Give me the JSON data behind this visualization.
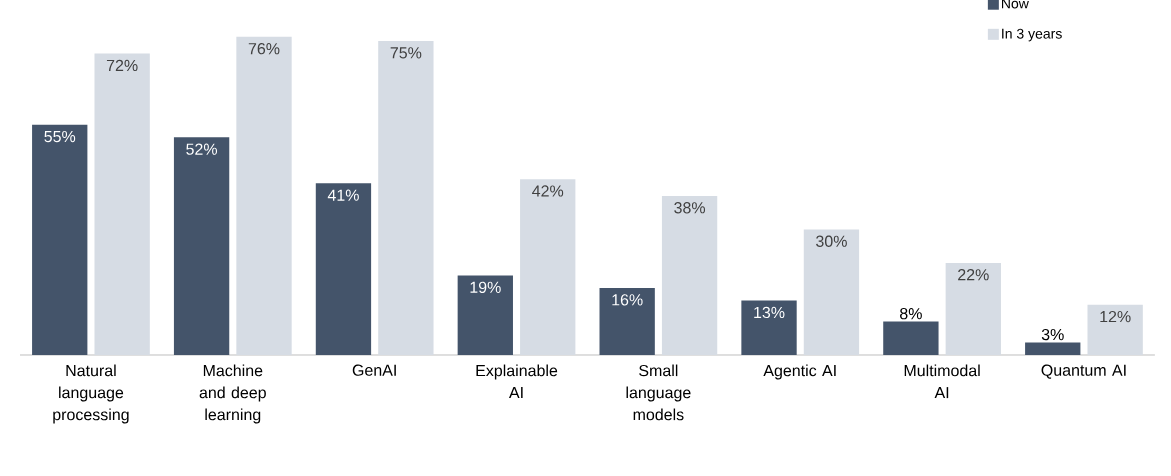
{
  "chart_data": {
    "type": "bar",
    "categories": [
      "Natural language processing",
      "Machine and deep learning",
      "GenAI",
      "Explainable AI",
      "Small language models",
      "Agentic AI",
      "Multimodal AI",
      "Quantum AI"
    ],
    "series": [
      {
        "name": "Now",
        "color": "#44546a",
        "values": [
          55,
          52,
          41,
          19,
          16,
          13,
          8,
          3
        ],
        "value_labels": [
          "55%",
          "52%",
          "41%",
          "19%",
          "16%",
          "13%",
          "8%",
          "3%"
        ]
      },
      {
        "name": "In 3 years",
        "color": "#d6dce4",
        "values": [
          72,
          76,
          75,
          42,
          38,
          30,
          22,
          12
        ],
        "value_labels": [
          "72%",
          "76%",
          "75%",
          "42%",
          "38%",
          "30%",
          "22%",
          "12%"
        ]
      }
    ],
    "legend": "top right"
  }
}
